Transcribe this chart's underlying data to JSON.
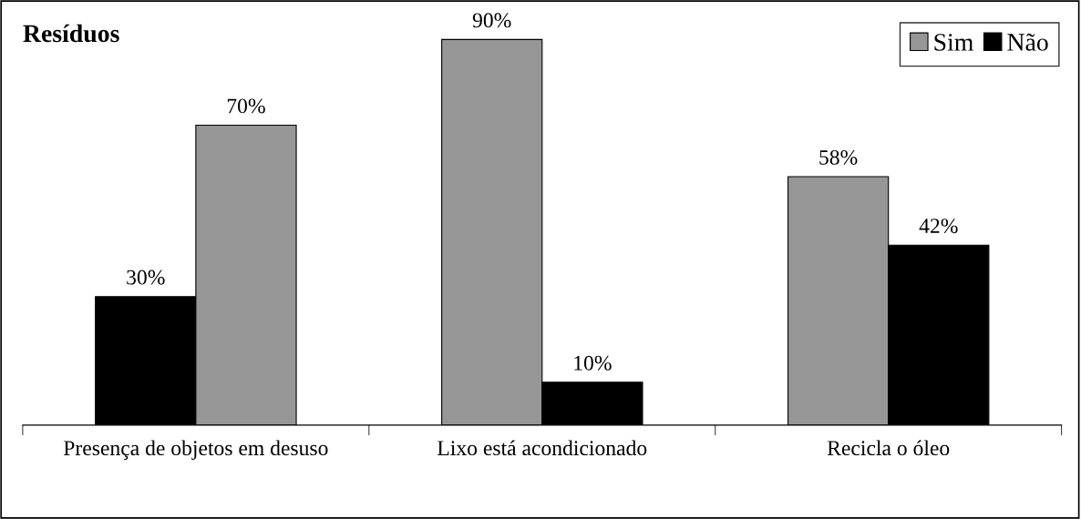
{
  "chart_data": {
    "type": "bar",
    "title": "Resíduos",
    "categories": [
      "Presença de objetos em desuso",
      "Lixo está acondicionado",
      "Recicla o óleo"
    ],
    "series": [
      {
        "color": "#000000",
        "values": [
          30,
          null,
          null
        ],
        "value_labels": [
          "30%",
          null,
          null
        ]
      },
      {
        "name": "Sim",
        "color": "#969696",
        "values": [
          70,
          90,
          58
        ],
        "value_labels": [
          "70%",
          "90%",
          "58%"
        ]
      },
      {
        "name": "Não",
        "color": "#000000",
        "values": [
          null,
          10,
          42
        ],
        "value_labels": [
          null,
          "10%",
          "42%"
        ]
      }
    ],
    "legend": "top right",
    "grid": false,
    "tick_labels": "x"
  }
}
